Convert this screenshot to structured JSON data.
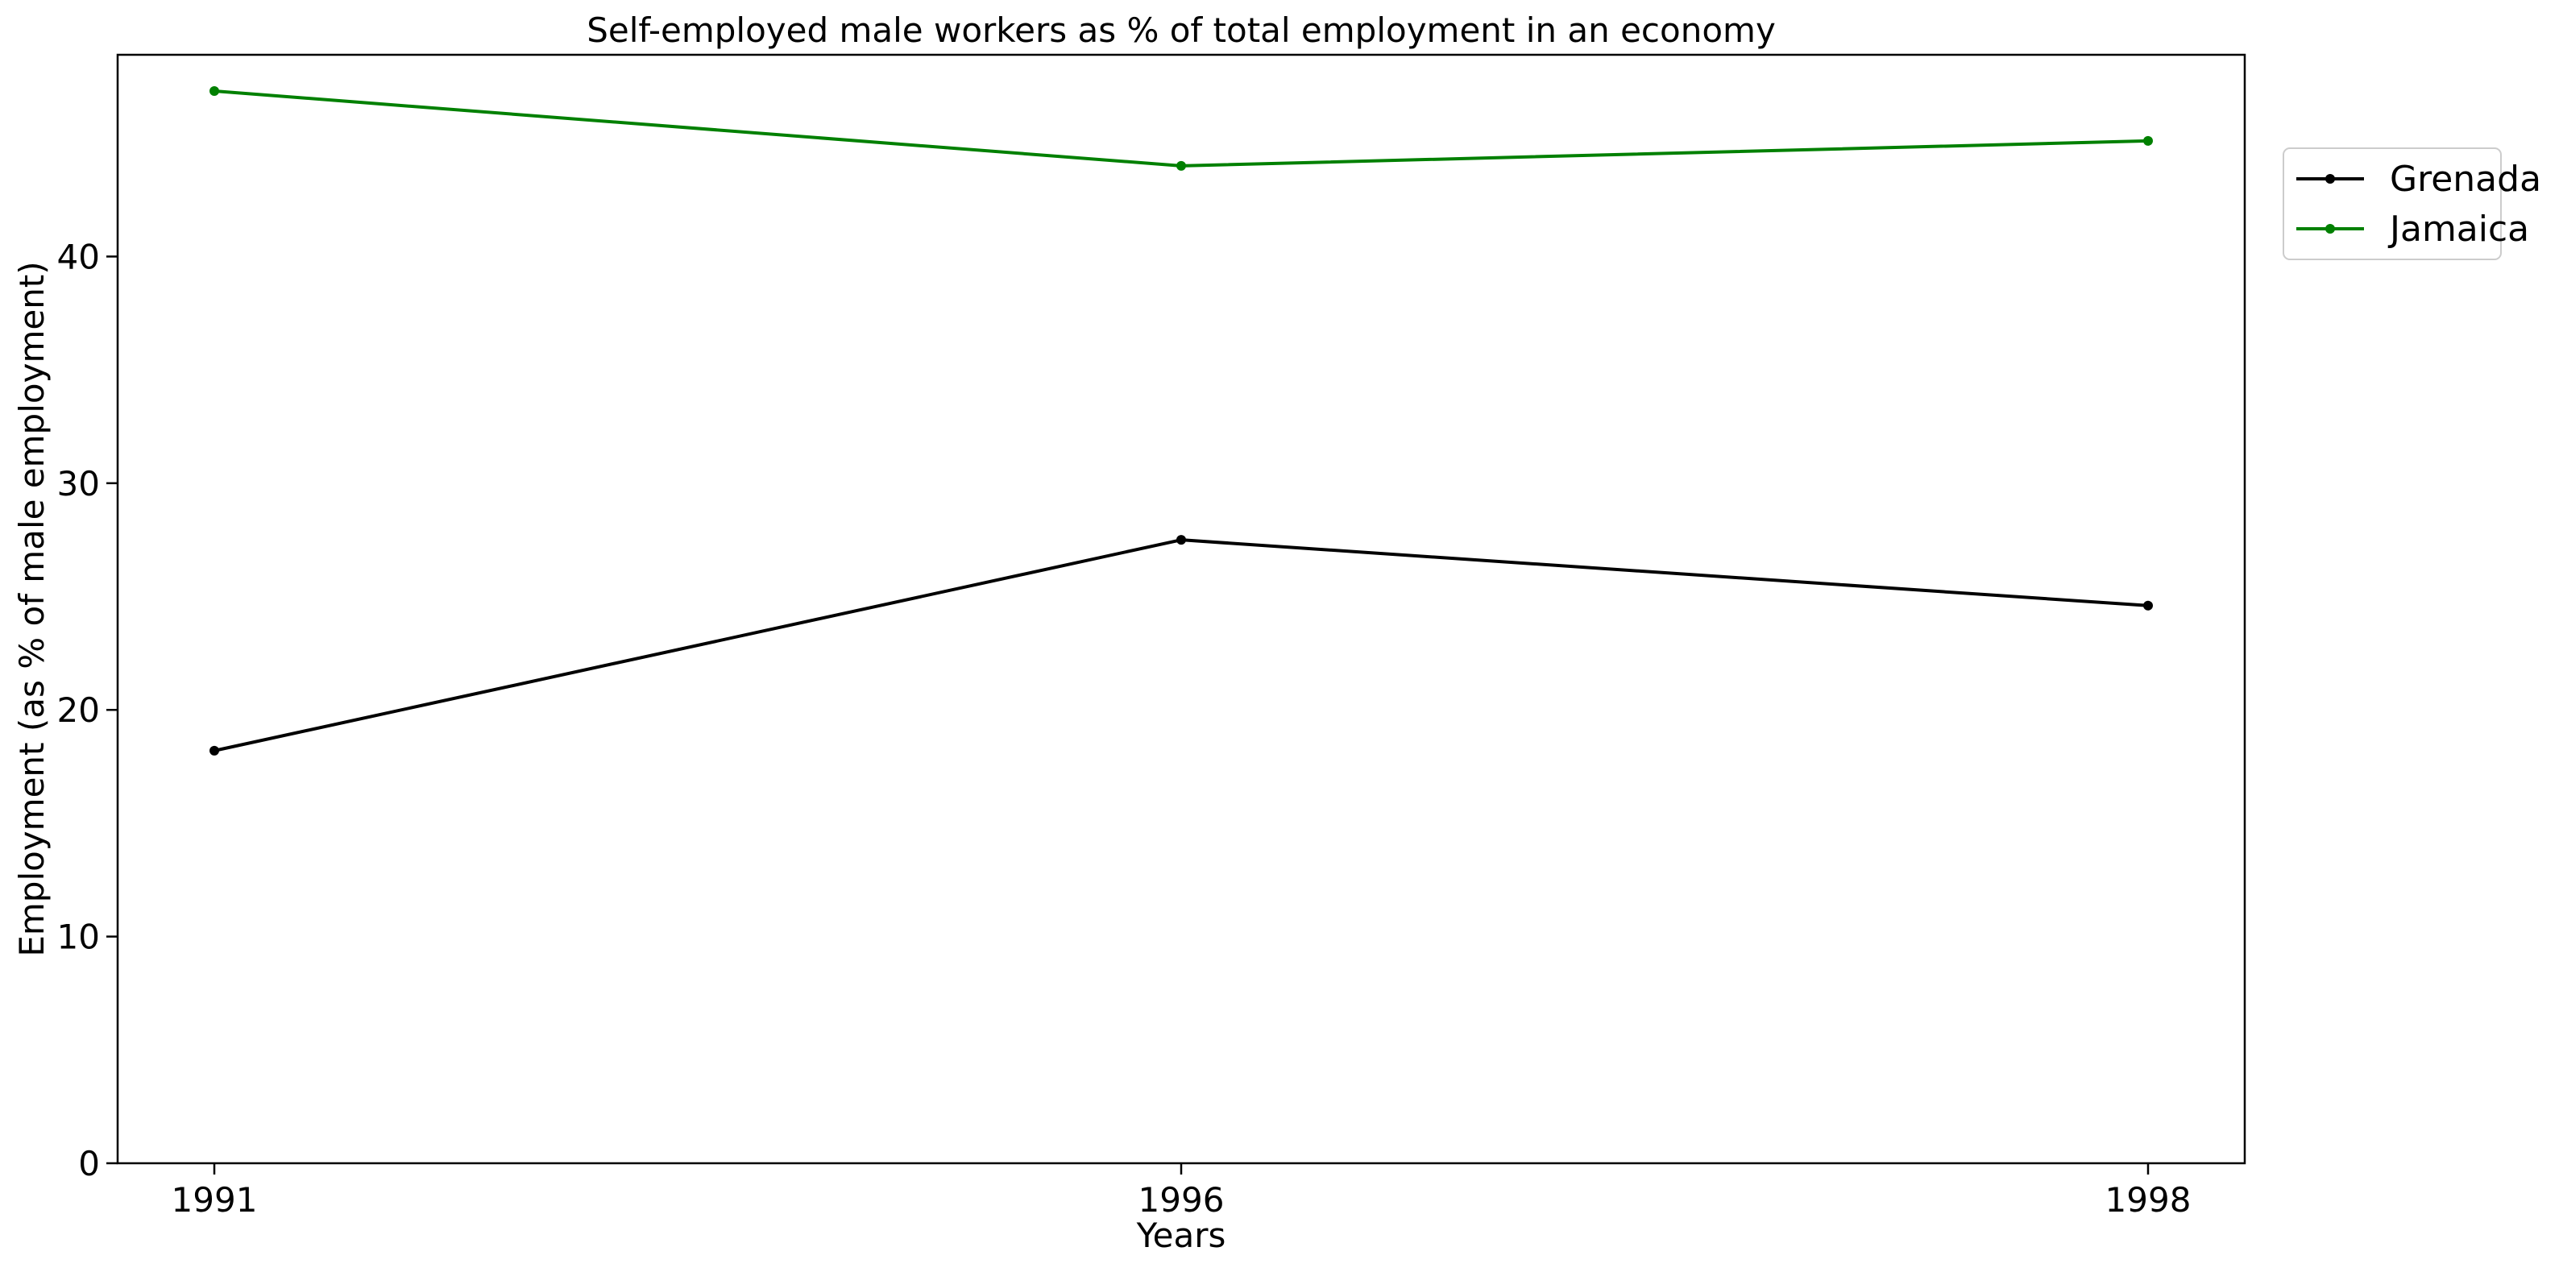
{
  "chart_data": {
    "type": "line",
    "title": "Self-employed male workers as % of total employment in an economy",
    "xlabel": "Years",
    "ylabel": "Employment (as % of male employment)",
    "categories": [
      "1991",
      "1996",
      "1998"
    ],
    "ylim": [
      0,
      48.9
    ],
    "yticks": [
      0,
      10,
      20,
      30,
      40
    ],
    "grid": false,
    "legend_position": "outside top-right",
    "series": [
      {
        "name": "Grenada",
        "color": "#000000",
        "values": [
          18.2,
          27.5,
          24.6
        ]
      },
      {
        "name": "Jamaica",
        "color": "#008000",
        "values": [
          47.3,
          44.0,
          45.1
        ]
      }
    ]
  }
}
